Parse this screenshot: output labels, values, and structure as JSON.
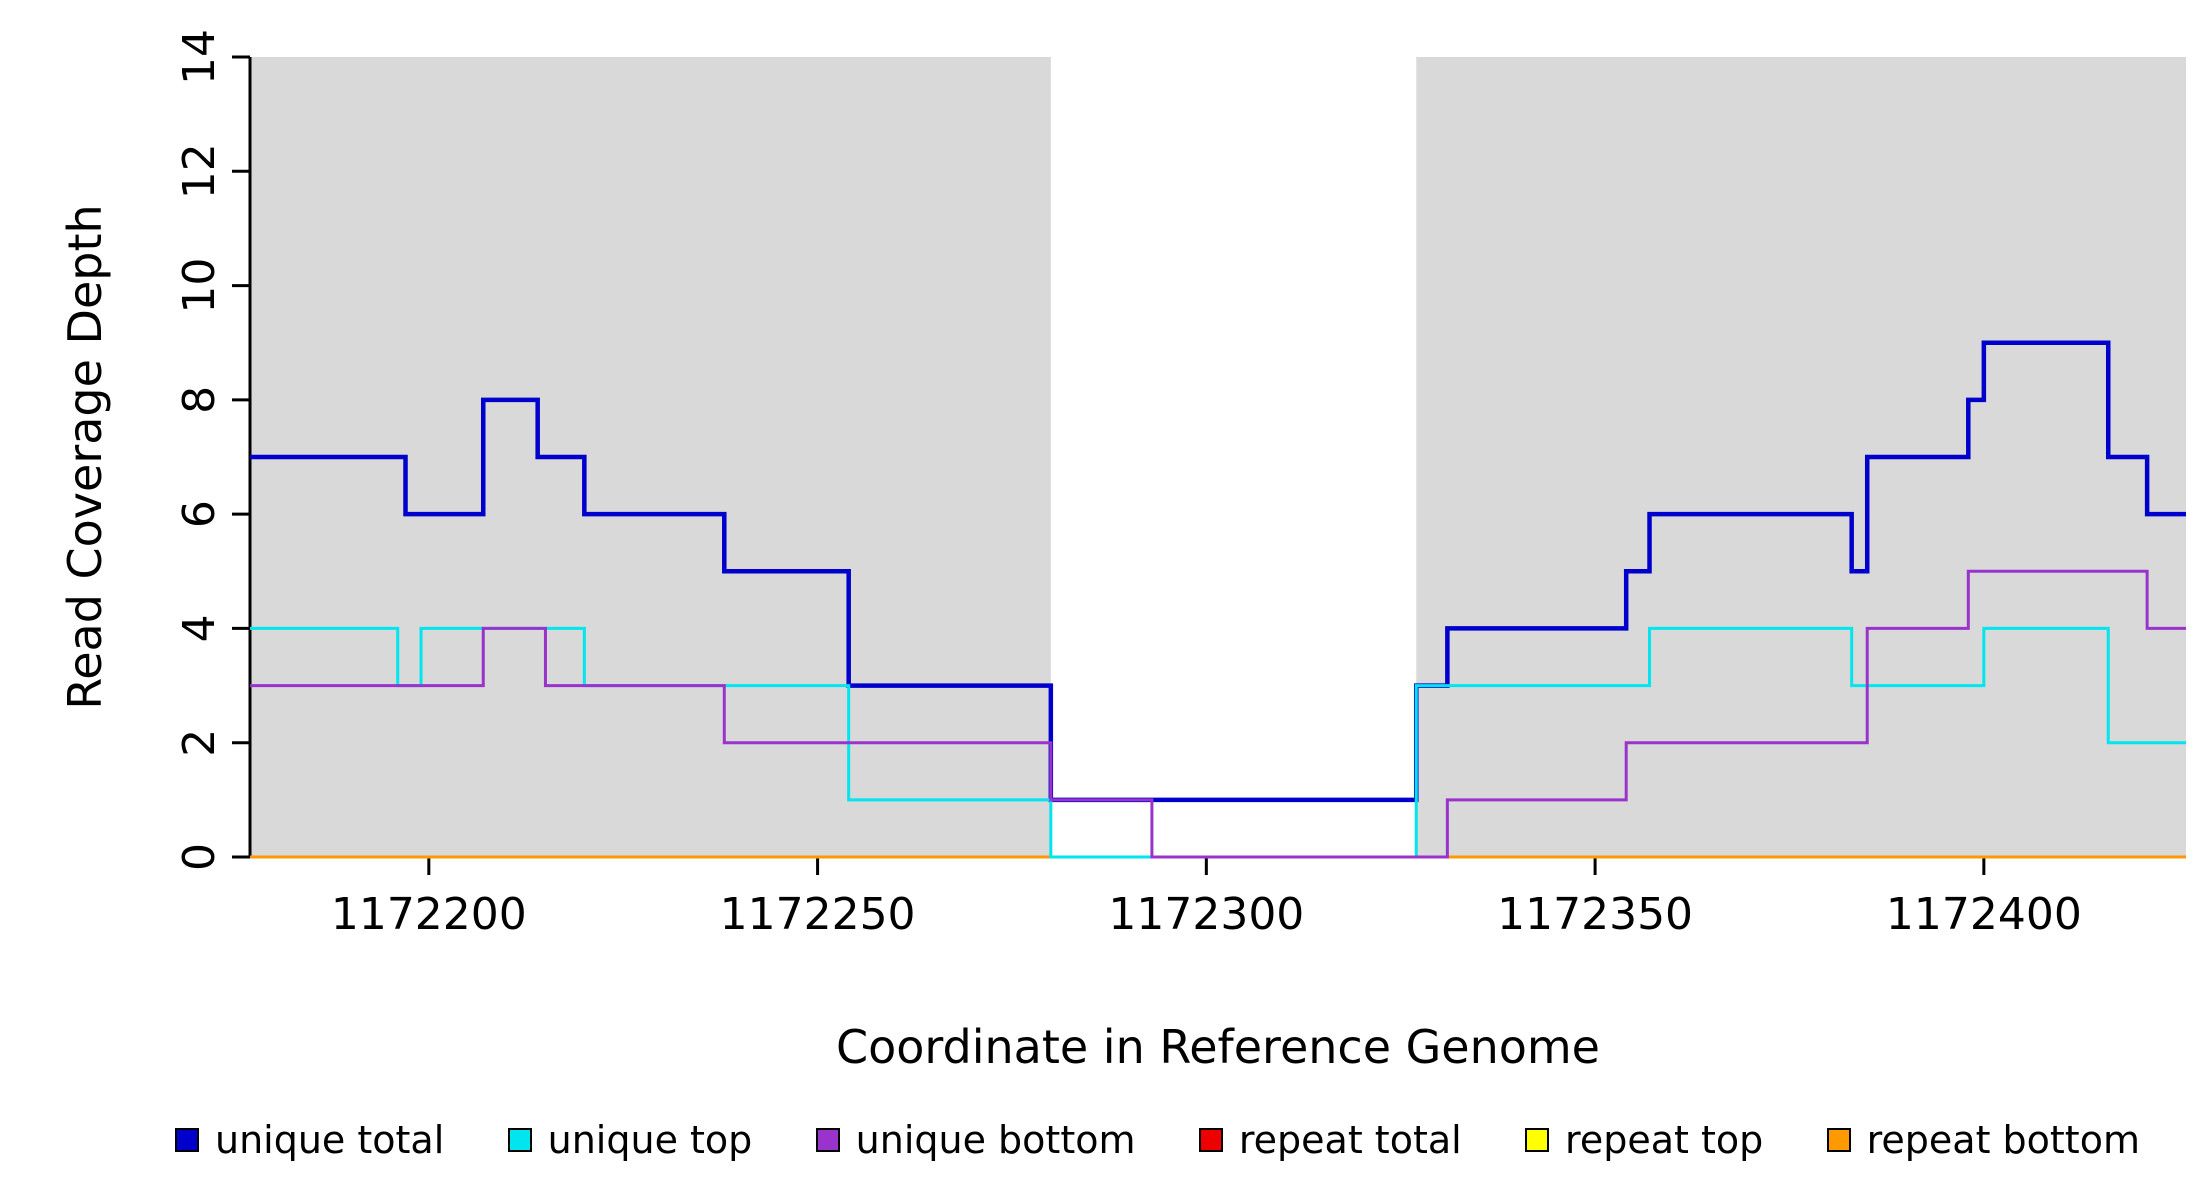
{
  "figure": {
    "background": "#FFFFFF",
    "shaded_region_color": "#D9D9D9",
    "axis_color": "#000000"
  },
  "chart_data": {
    "type": "line",
    "subtype": "step",
    "title": "",
    "xlabel": "Coordinate in Reference Genome",
    "ylabel": "Read Coverage Depth",
    "xlim": [
      1172177,
      1172426
    ],
    "ylim": [
      0,
      14
    ],
    "xticks": [
      1172200,
      1172250,
      1172300,
      1172350,
      1172400
    ],
    "yticks": [
      0,
      2,
      4,
      6,
      8,
      10,
      12,
      14
    ],
    "grid": false,
    "legend_position": "bottom",
    "shaded_x_regions": [
      [
        1172177,
        1172280
      ],
      [
        1172327,
        1172426
      ]
    ],
    "draw_order": [
      3,
      4,
      5,
      0,
      1,
      2
    ],
    "series": [
      {
        "name": "unique total",
        "color": "#0000CC",
        "width": 4.5,
        "steps": [
          [
            1172177,
            7
          ],
          [
            1172197,
            6
          ],
          [
            1172207,
            8
          ],
          [
            1172214,
            7
          ],
          [
            1172220,
            6
          ],
          [
            1172238,
            5
          ],
          [
            1172254,
            3
          ],
          [
            1172280,
            1
          ],
          [
            1172327,
            3
          ],
          [
            1172331,
            4
          ],
          [
            1172354,
            5
          ],
          [
            1172357,
            6
          ],
          [
            1172383,
            5
          ],
          [
            1172385,
            7
          ],
          [
            1172398,
            8
          ],
          [
            1172400,
            9
          ],
          [
            1172416,
            7
          ],
          [
            1172421,
            6
          ]
        ]
      },
      {
        "name": "unique top",
        "color": "#00E5EE",
        "width": 3,
        "steps": [
          [
            1172177,
            4
          ],
          [
            1172196,
            3
          ],
          [
            1172199,
            4
          ],
          [
            1172220,
            3
          ],
          [
            1172254,
            1
          ],
          [
            1172280,
            0
          ],
          [
            1172327,
            3
          ],
          [
            1172357,
            4
          ],
          [
            1172383,
            3
          ],
          [
            1172400,
            4
          ],
          [
            1172416,
            2
          ]
        ]
      },
      {
        "name": "unique bottom",
        "color": "#9933CC",
        "width": 3,
        "steps": [
          [
            1172177,
            3
          ],
          [
            1172207,
            4
          ],
          [
            1172215,
            3
          ],
          [
            1172238,
            2
          ],
          [
            1172280,
            1
          ],
          [
            1172293,
            0
          ],
          [
            1172331,
            1
          ],
          [
            1172354,
            2
          ],
          [
            1172385,
            4
          ],
          [
            1172398,
            5
          ],
          [
            1172421,
            4
          ]
        ]
      },
      {
        "name": "repeat total",
        "color": "#EE0000",
        "width": 3,
        "steps": [
          [
            1172177,
            0
          ]
        ]
      },
      {
        "name": "repeat top",
        "color": "#FFFF00",
        "width": 3,
        "steps": [
          [
            1172177,
            0
          ]
        ]
      },
      {
        "name": "repeat bottom",
        "color": "#FF9900",
        "width": 3,
        "steps": [
          [
            1172177,
            0
          ]
        ]
      }
    ]
  }
}
